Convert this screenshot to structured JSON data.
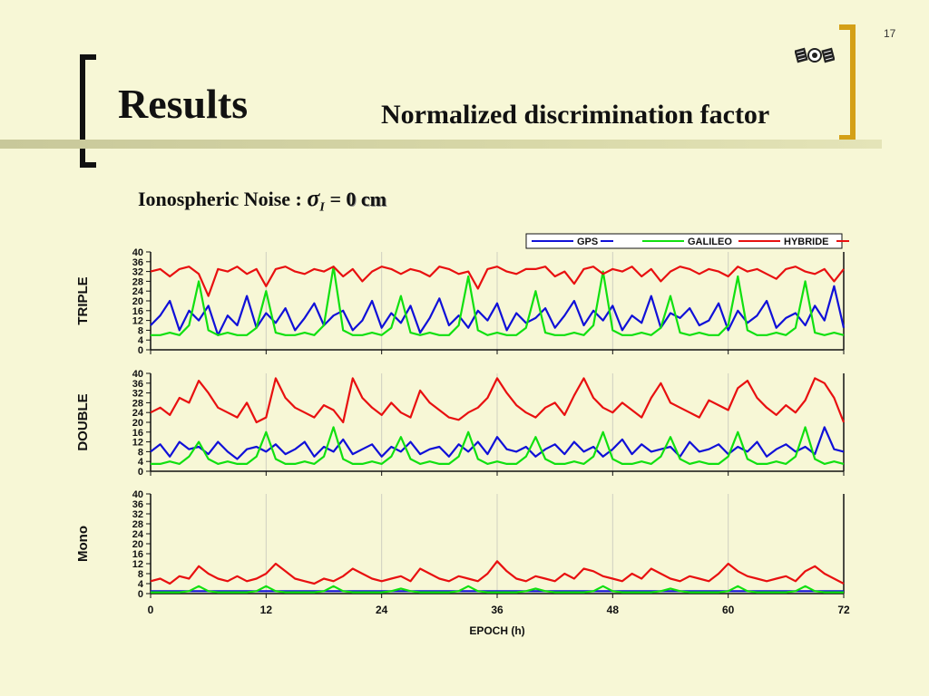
{
  "page": {
    "title": "Results",
    "subtitle": "Normalized discrimination factor",
    "page_number": "17",
    "noise_label": "Ionospheric Noise :",
    "noise_symbol": "σ",
    "noise_subscript": "I",
    "noise_equals": "=",
    "noise_value": "0 cm"
  },
  "colors": {
    "GPS": "#1010d8",
    "GALILEO": "#10e010",
    "HYBRIDE": "#e81010",
    "accent_bracket": "#d4a017"
  },
  "icons": {
    "satellite": "satellite-icon"
  },
  "chart_data": {
    "type": "line",
    "xlabel": "EPOCH (h)",
    "xlim": [
      0,
      72
    ],
    "xticks": [
      0,
      12,
      24,
      36,
      48,
      60,
      72
    ],
    "legend": {
      "entries": [
        "GPS",
        "GALILEO",
        "HYBRIDE"
      ],
      "placement": "top-right"
    },
    "x": [
      0,
      1,
      2,
      3,
      4,
      5,
      6,
      7,
      8,
      9,
      10,
      11,
      12,
      13,
      14,
      15,
      16,
      17,
      18,
      19,
      20,
      21,
      22,
      23,
      24,
      25,
      26,
      27,
      28,
      29,
      30,
      31,
      32,
      33,
      34,
      35,
      36,
      37,
      38,
      39,
      40,
      41,
      42,
      43,
      44,
      45,
      46,
      47,
      48,
      49,
      50,
      51,
      52,
      53,
      54,
      55,
      56,
      57,
      58,
      59,
      60,
      61,
      62,
      63,
      64,
      65,
      66,
      67,
      68,
      69,
      70,
      71,
      72
    ],
    "panels": [
      {
        "ylabel": "TRIPLE",
        "ylim": [
          0,
          40
        ],
        "yticks": [
          0,
          4,
          8,
          12,
          16,
          20,
          24,
          28,
          32,
          36,
          40
        ],
        "series": [
          {
            "name": "GPS",
            "values": [
              10,
              14,
              20,
              8,
              16,
              12,
              18,
              6,
              14,
              10,
              22,
              9,
              15,
              11,
              17,
              8,
              13,
              19,
              10,
              14,
              16,
              8,
              12,
              20,
              9,
              15,
              11,
              18,
              7,
              13,
              21,
              10,
              14,
              9,
              16,
              12,
              19,
              8,
              15,
              11,
              13,
              17,
              9,
              14,
              20,
              10,
              16,
              12,
              18,
              8,
              14,
              11,
              22,
              9,
              15,
              13,
              17,
              10,
              12,
              19,
              8,
              16,
              11,
              14,
              20,
              9,
              13,
              15,
              10,
              18,
              12,
              26,
              9
            ]
          },
          {
            "name": "GALILEO",
            "values": [
              6,
              6,
              7,
              6,
              10,
              28,
              8,
              6,
              7,
              6,
              6,
              9,
              24,
              7,
              6,
              6,
              7,
              6,
              10,
              34,
              8,
              6,
              6,
              7,
              6,
              9,
              22,
              7,
              6,
              7,
              6,
              6,
              10,
              30,
              8,
              6,
              7,
              6,
              6,
              9,
              24,
              7,
              6,
              6,
              7,
              6,
              10,
              32,
              8,
              6,
              6,
              7,
              6,
              9,
              22,
              7,
              6,
              7,
              6,
              6,
              10,
              30,
              8,
              6,
              6,
              7,
              6,
              9,
              28,
              7,
              6,
              7,
              6
            ]
          },
          {
            "name": "HYBRIDE",
            "values": [
              32,
              33,
              30,
              33,
              34,
              31,
              22,
              33,
              32,
              34,
              31,
              33,
              26,
              33,
              34,
              32,
              31,
              33,
              32,
              34,
              30,
              33,
              28,
              32,
              34,
              33,
              31,
              33,
              32,
              30,
              34,
              33,
              31,
              32,
              25,
              33,
              34,
              32,
              31,
              33,
              33,
              34,
              30,
              32,
              27,
              33,
              34,
              31,
              33,
              32,
              34,
              30,
              33,
              28,
              32,
              34,
              33,
              31,
              33,
              32,
              30,
              34,
              32,
              33,
              31,
              29,
              33,
              34,
              32,
              31,
              33,
              28,
              33
            ]
          }
        ]
      },
      {
        "ylabel": "DOUBLE",
        "ylim": [
          0,
          40
        ],
        "yticks": [
          0,
          4,
          8,
          12,
          16,
          20,
          24,
          28,
          32,
          36,
          40
        ],
        "series": [
          {
            "name": "GPS",
            "values": [
              8,
              11,
              6,
              12,
              9,
              10,
              7,
              12,
              8,
              5,
              9,
              10,
              8,
              11,
              7,
              9,
              12,
              6,
              10,
              8,
              13,
              7,
              9,
              11,
              6,
              10,
              8,
              12,
              7,
              9,
              10,
              6,
              11,
              8,
              12,
              7,
              14,
              9,
              8,
              10,
              6,
              9,
              11,
              7,
              12,
              8,
              10,
              6,
              9,
              13,
              7,
              11,
              8,
              9,
              10,
              6,
              12,
              8,
              9,
              11,
              7,
              10,
              8,
              12,
              6,
              9,
              11,
              8,
              10,
              7,
              18,
              9,
              8
            ]
          },
          {
            "name": "GALILEO",
            "values": [
              3,
              3,
              4,
              3,
              6,
              12,
              5,
              3,
              4,
              3,
              3,
              6,
              16,
              5,
              3,
              3,
              4,
              3,
              6,
              18,
              5,
              3,
              3,
              4,
              3,
              6,
              14,
              5,
              3,
              4,
              3,
              3,
              6,
              16,
              5,
              3,
              4,
              3,
              3,
              6,
              14,
              5,
              3,
              3,
              4,
              3,
              6,
              16,
              5,
              3,
              3,
              4,
              3,
              6,
              14,
              5,
              3,
              4,
              3,
              3,
              6,
              16,
              5,
              3,
              3,
              4,
              3,
              6,
              18,
              5,
              3,
              4,
              3
            ]
          },
          {
            "name": "HYBRIDE",
            "values": [
              24,
              26,
              23,
              30,
              28,
              37,
              32,
              26,
              24,
              22,
              28,
              20,
              22,
              38,
              30,
              26,
              24,
              22,
              27,
              25,
              20,
              38,
              30,
              26,
              23,
              28,
              24,
              22,
              33,
              28,
              25,
              22,
              21,
              24,
              26,
              30,
              38,
              32,
              27,
              24,
              22,
              26,
              28,
              23,
              31,
              38,
              30,
              26,
              24,
              28,
              25,
              22,
              30,
              36,
              28,
              26,
              24,
              22,
              29,
              27,
              25,
              34,
              37,
              30,
              26,
              23,
              27,
              24,
              29,
              38,
              36,
              30,
              20
            ]
          }
        ]
      },
      {
        "ylabel": "Mono",
        "ylim": [
          0,
          40
        ],
        "yticks": [
          0,
          4,
          8,
          12,
          16,
          20,
          24,
          28,
          32,
          36,
          40
        ],
        "series": [
          {
            "name": "GPS",
            "values": [
              1,
              1,
              1,
              1,
              1,
              1,
              1,
              1,
              1,
              1,
              1,
              1,
              1,
              1,
              1,
              1,
              1,
              1,
              1,
              1,
              1,
              1,
              1,
              1,
              1,
              1,
              1,
              1,
              1,
              1,
              1,
              1,
              1,
              1,
              1,
              1,
              1,
              1,
              1,
              1,
              1,
              1,
              1,
              1,
              1,
              1,
              1,
              1,
              1,
              1,
              1,
              1,
              1,
              1,
              1,
              1,
              1,
              1,
              1,
              1,
              1,
              1,
              1,
              1,
              1,
              1,
              1,
              1,
              1,
              1,
              1,
              1,
              1
            ]
          },
          {
            "name": "GALILEO",
            "values": [
              0.5,
              0.5,
              0.5,
              0.5,
              1,
              3,
              1,
              0.5,
              0.5,
              0.5,
              0.5,
              1,
              3,
              1,
              0.5,
              0.5,
              0.5,
              0.5,
              1,
              3,
              1,
              0.5,
              0.5,
              0.5,
              0.5,
              1,
              2,
              1,
              0.5,
              0.5,
              0.5,
              0.5,
              1,
              3,
              1,
              0.5,
              0.5,
              0.5,
              0.5,
              1,
              2,
              1,
              0.5,
              0.5,
              0.5,
              0.5,
              1,
              3,
              1,
              0.5,
              0.5,
              0.5,
              0.5,
              1,
              2,
              1,
              0.5,
              0.5,
              0.5,
              0.5,
              1,
              3,
              1,
              0.5,
              0.5,
              0.5,
              0.5,
              1,
              3,
              1,
              0.5,
              0.5,
              0.5
            ]
          },
          {
            "name": "HYBRIDE",
            "values": [
              5,
              6,
              4,
              7,
              6,
              11,
              8,
              6,
              5,
              7,
              5,
              6,
              8,
              12,
              9,
              6,
              5,
              4,
              6,
              5,
              7,
              10,
              8,
              6,
              5,
              6,
              7,
              5,
              10,
              8,
              6,
              5,
              7,
              6,
              5,
              8,
              13,
              9,
              6,
              5,
              7,
              6,
              5,
              8,
              6,
              10,
              9,
              7,
              6,
              5,
              8,
              6,
              10,
              8,
              6,
              5,
              7,
              6,
              5,
              8,
              12,
              9,
              7,
              6,
              5,
              6,
              7,
              5,
              9,
              11,
              8,
              6,
              4
            ]
          }
        ]
      }
    ]
  }
}
